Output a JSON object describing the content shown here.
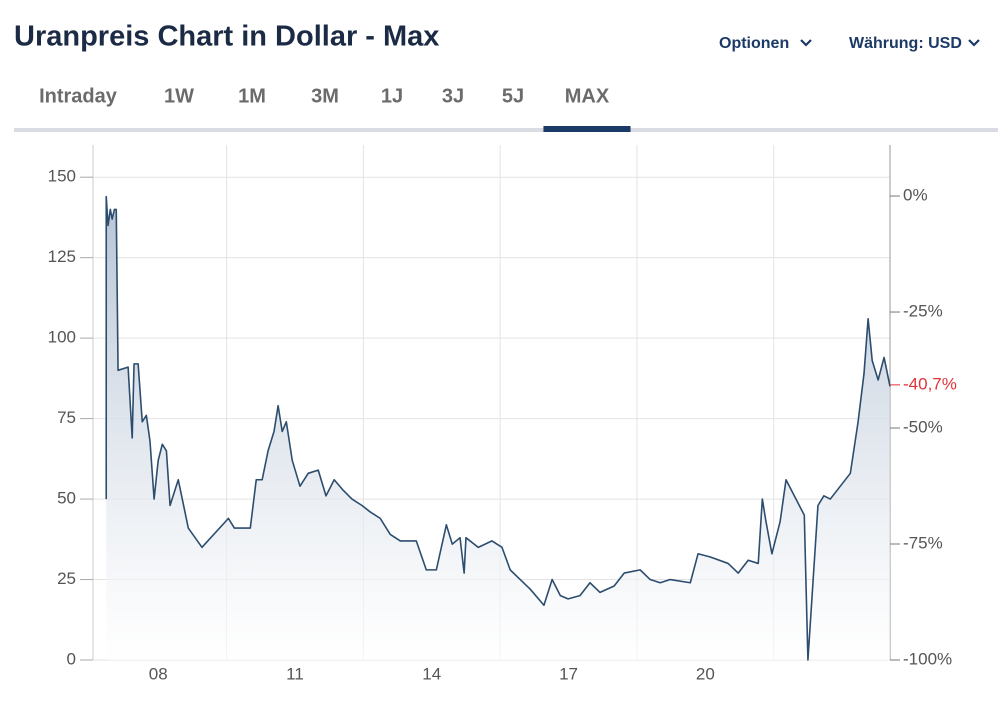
{
  "header": {
    "title": "Uranpreis Chart in Dollar - Max",
    "options": "Optionen",
    "currency": "Währung: USD"
  },
  "tabs": [
    "Intraday",
    "1W",
    "1M",
    "3M",
    "1J",
    "3J",
    "5J",
    "MAX"
  ],
  "active_tab": 7,
  "chart_data": {
    "type": "area",
    "color": "#2d4d6e",
    "x": [
      2007.36,
      2007.36,
      2007.4,
      2007.45,
      2007.49,
      2007.54,
      2007.58,
      2007.62,
      2007.84,
      2007.93,
      2007.97,
      2008.06,
      2008.15,
      2008.24,
      2008.32,
      2008.41,
      2008.5,
      2008.59,
      2008.68,
      2008.76,
      2008.94,
      2009.16,
      2009.46,
      2010.04,
      2010.17,
      2010.52,
      2010.65,
      2010.78,
      2010.91,
      2011.04,
      2011.13,
      2011.22,
      2011.31,
      2011.44,
      2011.61,
      2011.79,
      2012.01,
      2012.18,
      2012.36,
      2012.54,
      2012.75,
      2012.97,
      2013.15,
      2013.37,
      2013.59,
      2013.81,
      2014.16,
      2014.38,
      2014.6,
      2014.82,
      2014.95,
      2015.12,
      2015.21,
      2015.25,
      2015.52,
      2015.82,
      2016.04,
      2016.22,
      2016.44,
      2016.66,
      2016.96,
      2017.14,
      2017.32,
      2017.49,
      2017.75,
      2017.97,
      2018.19,
      2018.5,
      2018.72,
      2019.07,
      2019.29,
      2019.51,
      2019.73,
      2020.17,
      2020.34,
      2020.61,
      2021.0,
      2021.22,
      2021.44,
      2021.66,
      2021.75,
      2021.83,
      2021.96,
      2022.14,
      2022.27,
      2022.67,
      2022.75,
      2022.97,
      2023.1,
      2023.24,
      2023.68,
      2023.85,
      2023.98,
      2024.07,
      2024.16,
      2024.29,
      2024.42,
      2024.55
    ],
    "values": [
      50,
      144,
      135,
      140,
      137,
      140,
      140,
      90,
      91,
      69,
      92,
      92,
      74,
      76,
      68,
      50,
      62,
      67,
      65,
      48,
      56,
      41,
      35,
      44,
      41,
      41,
      56,
      56,
      65,
      71,
      79,
      71,
      74,
      62,
      54,
      58,
      59,
      51,
      56,
      53,
      50,
      48,
      46,
      44,
      39,
      37,
      37,
      28,
      28,
      42,
      36,
      38,
      27,
      38,
      35,
      37,
      35,
      28,
      25,
      22,
      17,
      25,
      20,
      19,
      20,
      24,
      21,
      23,
      27,
      28,
      25,
      24,
      25,
      24,
      33,
      32,
      30,
      27,
      31,
      30,
      50,
      43,
      33,
      43,
      56,
      45,
      0,
      48,
      51,
      50,
      58,
      74,
      89,
      106,
      93,
      87,
      94,
      85
    ],
    "xlim": [
      2007.07,
      2024.55
    ],
    "xticks": [
      {
        "value": 2008.5,
        "label": "08"
      },
      {
        "value": 2011.5,
        "label": "11"
      },
      {
        "value": 2014.5,
        "label": "14"
      },
      {
        "value": 2017.5,
        "label": "17"
      },
      {
        "value": 2020.5,
        "label": "20"
      }
    ],
    "xgrid": [
      2010,
      2013,
      2016,
      2019,
      2022
    ],
    "ylim": [
      0,
      160
    ],
    "yticks": [
      0,
      25,
      50,
      75,
      100,
      125,
      150
    ],
    "y2lim": [
      -100,
      11
    ],
    "y2ticks": [
      {
        "value": 0,
        "label": "0%"
      },
      {
        "value": -25,
        "label": "-25%"
      },
      {
        "value": -50,
        "label": "-50%"
      },
      {
        "value": -75,
        "label": "-75%"
      },
      {
        "value": -100,
        "label": "-100%"
      }
    ],
    "current": {
      "value": -40.7,
      "label": "-40,7%",
      "color": "#e0343a"
    },
    "grid": true
  }
}
